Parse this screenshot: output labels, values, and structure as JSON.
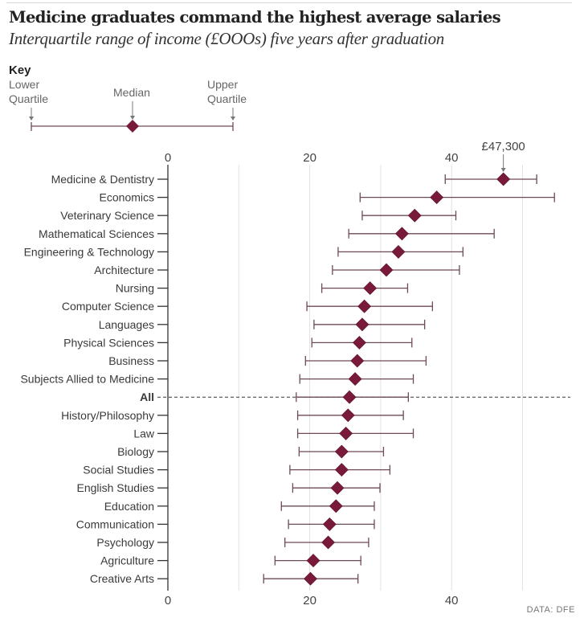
{
  "header": {
    "title": "Medicine graduates command the highest average salaries",
    "subtitle": "Interquartile range of income (£OOOs) five years after graduation"
  },
  "key": {
    "heading": "Key",
    "lower_line1": "Lower",
    "lower_line2": "Quartile",
    "median": "Median",
    "upper_line1": "Upper",
    "upper_line2": "Quartile"
  },
  "colors": {
    "median_marker": "#7a1a3a",
    "range_line": "#6e4a55",
    "gridline": "#e2e2e2",
    "axis": "#333333"
  },
  "source": "DATA: DFE",
  "chart_data": {
    "type": "range-dot",
    "title": "Medicine graduates command the highest average salaries",
    "subtitle": "Interquartile range of income (£OOOs) five years after graduation",
    "xlabel": "",
    "ylabel": "",
    "xlim": [
      0,
      55
    ],
    "xticks": [
      0,
      20,
      40
    ],
    "gridlines": [
      10,
      20,
      30,
      40,
      50
    ],
    "grid": true,
    "annotation": {
      "category": "Medicine & Dentistry",
      "text": "£47,300"
    },
    "reference_category": "All",
    "categories": [
      "Medicine & Dentistry",
      "Economics",
      "Veterinary Science",
      "Mathematical Sciences",
      "Engineering & Technology",
      "Architecture",
      "Nursing",
      "Computer Science",
      "Languages",
      "Physical Sciences",
      "Business",
      "Subjects Allied to Medicine",
      "All",
      "History/Philosophy",
      "Law",
      "Biology",
      "Social Studies",
      "English Studies",
      "Education",
      "Communication",
      "Psychology",
      "Agriculture",
      "Creative Arts"
    ],
    "series": [
      {
        "name": "Lower Quartile",
        "values": [
          39.1,
          27.1,
          27.4,
          25.5,
          24.0,
          23.2,
          21.7,
          19.6,
          20.6,
          20.3,
          19.4,
          18.6,
          18.1,
          18.3,
          18.3,
          18.5,
          17.2,
          17.6,
          16.0,
          17.0,
          16.5,
          15.1,
          13.5
        ]
      },
      {
        "name": "Median",
        "values": [
          47.3,
          37.9,
          34.8,
          33.0,
          32.5,
          30.8,
          28.5,
          27.7,
          27.4,
          27.0,
          26.7,
          26.4,
          25.6,
          25.4,
          25.1,
          24.5,
          24.5,
          23.9,
          23.7,
          22.8,
          22.6,
          20.5,
          20.1
        ]
      },
      {
        "name": "Upper Quartile",
        "values": [
          52.0,
          54.5,
          40.6,
          46.0,
          41.6,
          41.1,
          33.8,
          37.3,
          36.2,
          34.4,
          36.4,
          34.6,
          33.9,
          33.2,
          34.6,
          30.4,
          31.3,
          29.9,
          29.1,
          29.1,
          28.3,
          27.2,
          26.8
        ]
      }
    ]
  }
}
